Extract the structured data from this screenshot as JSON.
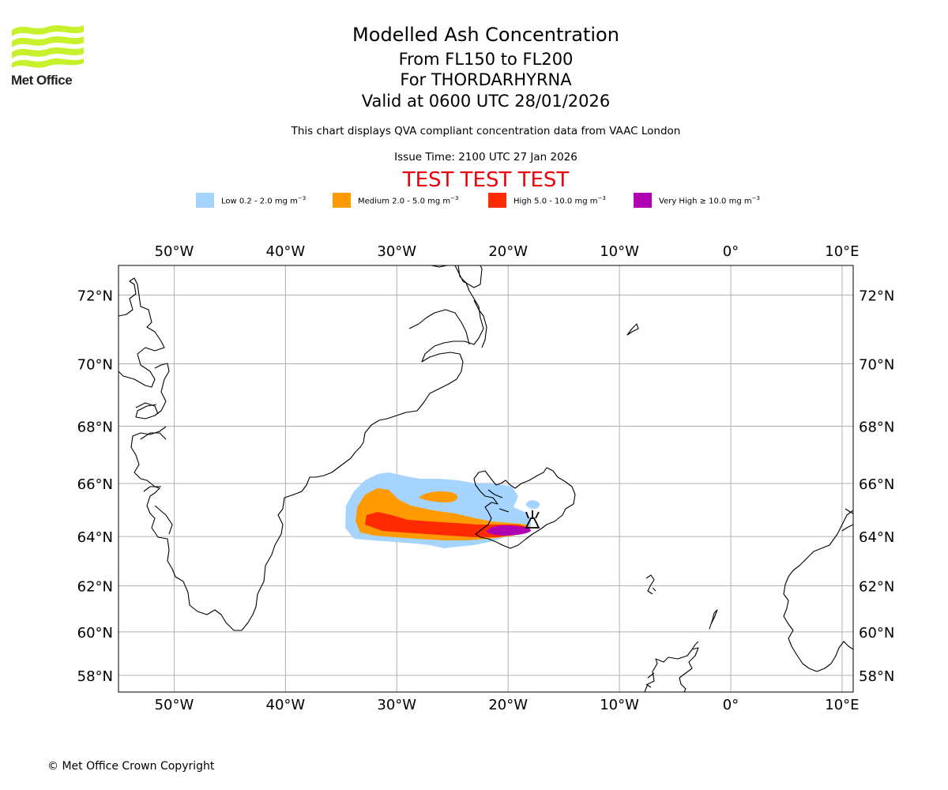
{
  "logo": {
    "text": "Met Office",
    "color": "#c7f12b"
  },
  "title": {
    "main": "Modelled Ash Concentration",
    "levels": "From FL150 to FL200",
    "volcano": "For THORDARHYRNA",
    "valid": "Valid at 0600 UTC 28/01/2026"
  },
  "subtitle": "This chart displays QVA compliant concentration data from VAAC London",
  "issue_time": "Issue Time: 2100 UTC 27 Jan 2026",
  "test_banner": "TEST TEST TEST",
  "legend": [
    {
      "label": "Low 0.2 - 2.0 mg m",
      "sup": "−3",
      "color": "#a4d4ff"
    },
    {
      "label": "Medium 2.0 - 5.0 mg m",
      "sup": "−3",
      "color": "#ff9b00"
    },
    {
      "label": "High 5.0 - 10.0 mg m",
      "sup": "−3",
      "color": "#ff2a00"
    },
    {
      "label": "Very High  ≥  10.0 mg m",
      "sup": "−3",
      "color": "#b000b4"
    }
  ],
  "map": {
    "lon_range": [
      -55,
      11
    ],
    "lat_range": [
      57.2,
      72.8
    ],
    "lon_ticks": [
      {
        "value": -50,
        "label": "50°W"
      },
      {
        "value": -40,
        "label": "40°W"
      },
      {
        "value": -30,
        "label": "30°W"
      },
      {
        "value": -20,
        "label": "20°W"
      },
      {
        "value": -10,
        "label": "10°W"
      },
      {
        "value": 0,
        "label": "0°"
      },
      {
        "value": 10,
        "label": "10°E"
      }
    ],
    "lat_ticks": [
      {
        "value": 72,
        "label": "72°N"
      },
      {
        "value": 70,
        "label": "70°N"
      },
      {
        "value": 68,
        "label": "68°N"
      },
      {
        "value": 66,
        "label": "66°N"
      },
      {
        "value": 64,
        "label": "64°N"
      },
      {
        "value": 62,
        "label": "62°N"
      },
      {
        "value": 60,
        "label": "60°N"
      },
      {
        "value": 58,
        "label": "58°N"
      }
    ],
    "volcano_location": {
      "lon": -17.8,
      "lat": 64.35
    },
    "grid_color": "#b0b0b0"
  },
  "copyright": "© Met Office Crown Copyright"
}
